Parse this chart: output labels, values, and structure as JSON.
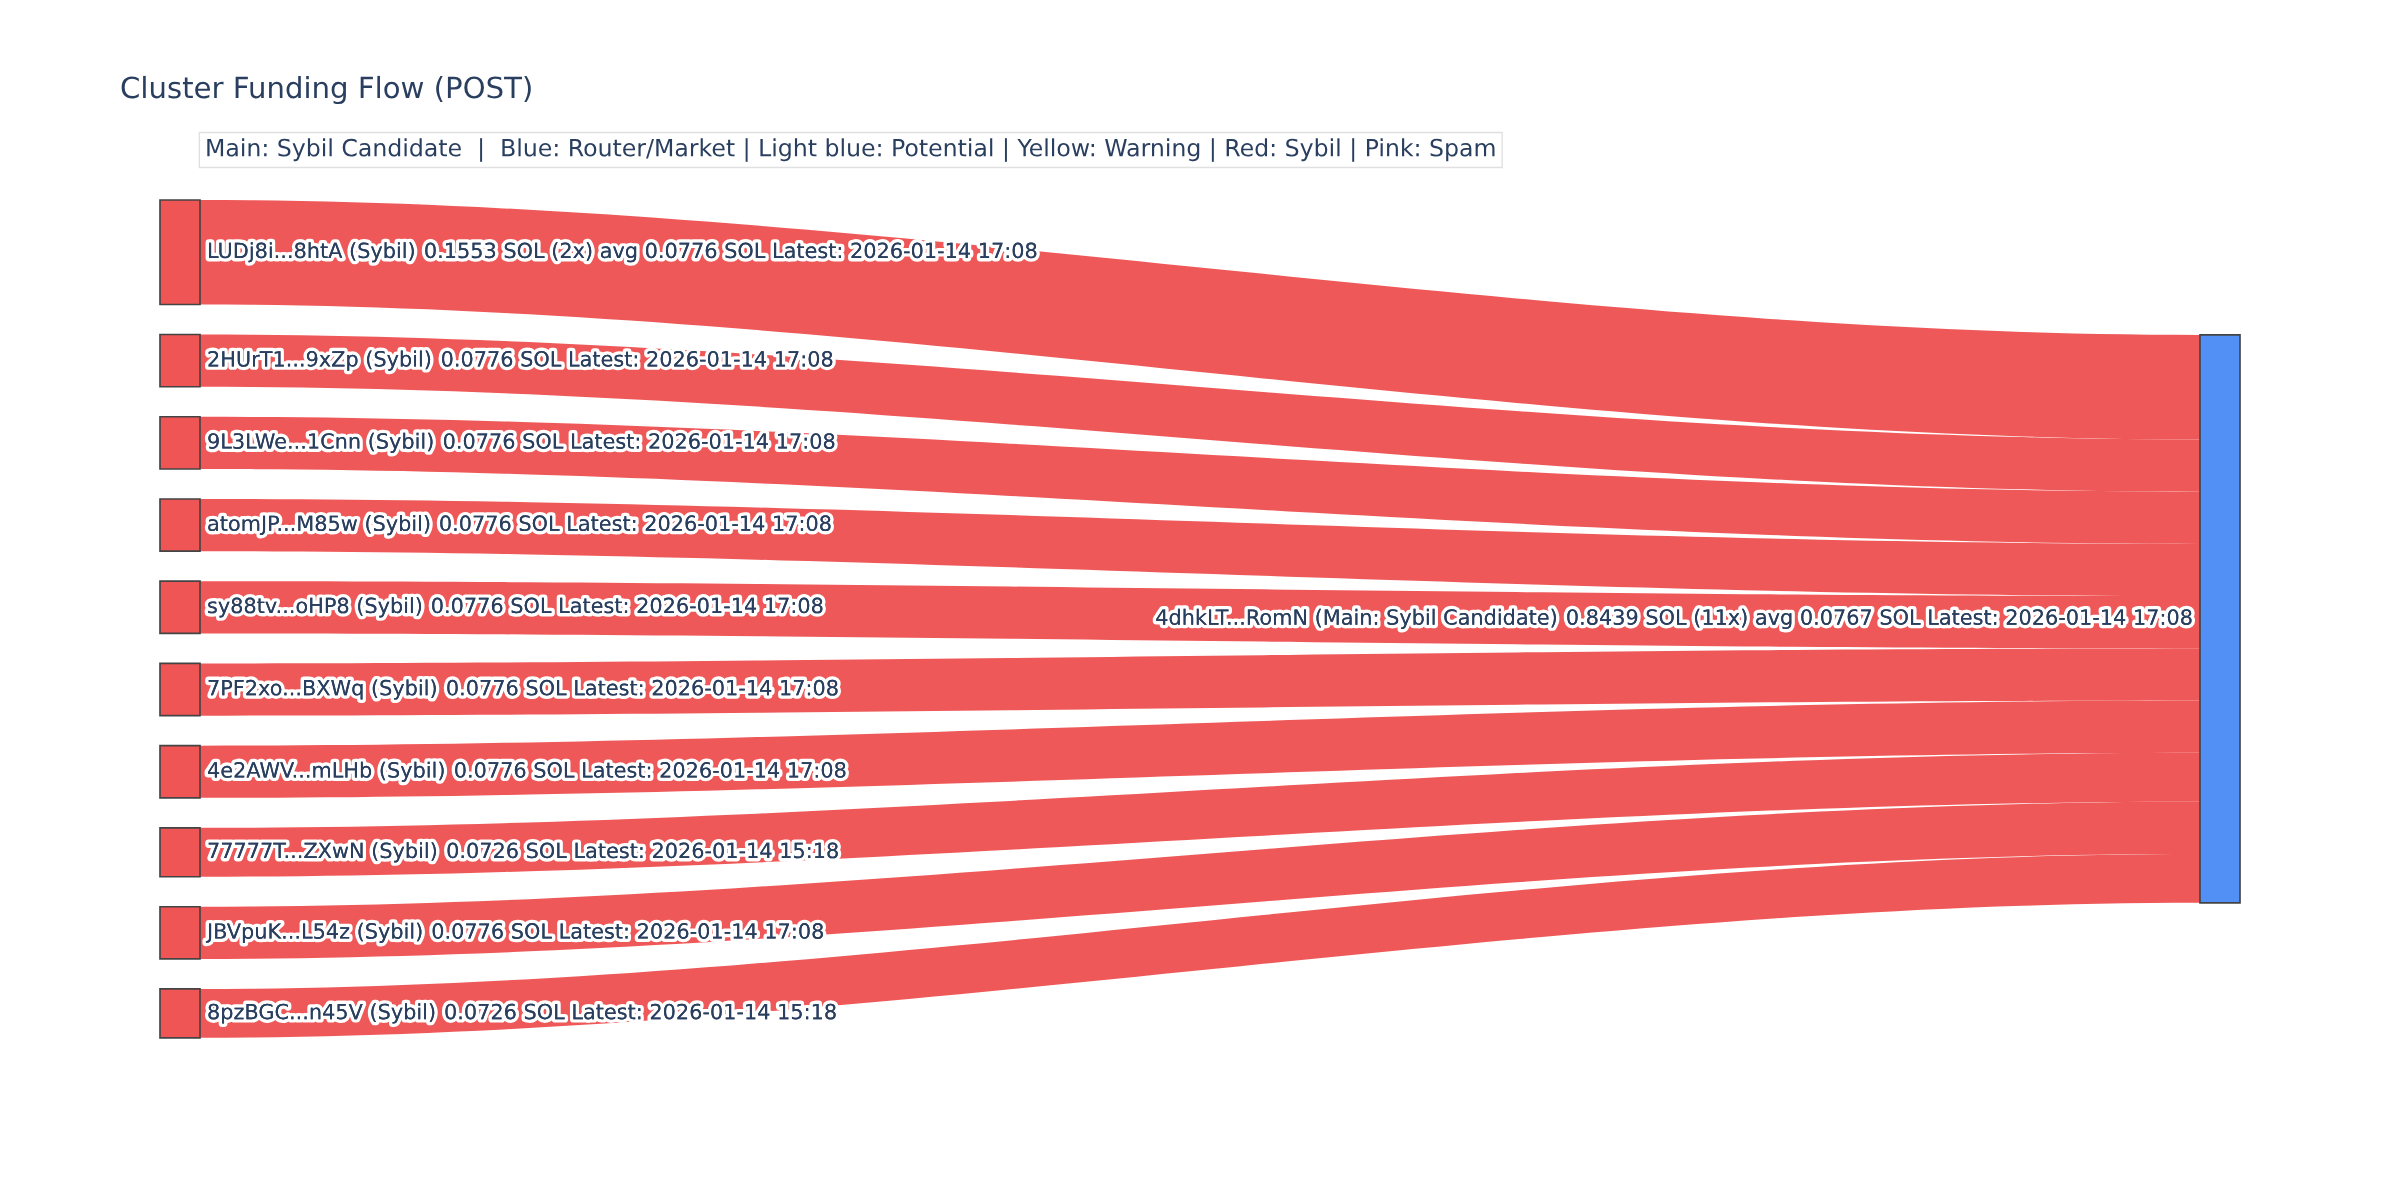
{
  "chart_data": {
    "type": "other",
    "title": "Cluster Funding Flow (POST)",
    "categories": [
      "LUDj8i...8htA (Sybil)",
      "2HUrT1...9xZp (Sybil)",
      "9L3LWe...1Cnn (Sybil)",
      "atomJP...M85w (Sybil)",
      "sy88tv...oHP8 (Sybil)",
      "7PF2xo...BXWq (Sybil)",
      "4e2AWV...mLHb (Sybil)",
      "77777T...ZXwN (Sybil)",
      "JBVpuK...L54z (Sybil)",
      "8pzBGC...n45V (Sybil)",
      "4dhkLT...RomN (Main: Sybil Candidate)"
    ],
    "values": [
      0.1553,
      0.0776,
      0.0776,
      0.0776,
      0.0776,
      0.0776,
      0.0776,
      0.0726,
      0.0776,
      0.0726,
      0.8439
    ],
    "value_labels": [
      "0.1553 SOL (2x) avg 0.0776 SOL Latest: 2026-01-14 17:08",
      "0.0776 SOL Latest: 2026-01-14 17:08",
      "0.0776 SOL Latest: 2026-01-14 17:08",
      "0.0776 SOL Latest: 2026-01-14 17:08",
      "0.0776 SOL Latest: 2026-01-14 17:08",
      "0.0776 SOL Latest: 2026-01-14 17:08",
      "0.0776 SOL Latest: 2026-01-14 17:08",
      "0.0726 SOL Latest: 2026-01-14 15:18",
      "0.0776 SOL Latest: 2026-01-14 17:08",
      "0.0726 SOL Latest: 2026-01-14 15:18",
      "0.8439 SOL (11x) avg 0.0767 SOL Latest: 2026-01-14 17:08"
    ],
    "colors": [
      "#ef5555",
      "#ef5555",
      "#ef5555",
      "#ef5555",
      "#ef5555",
      "#ef5555",
      "#ef5555",
      "#ef5555",
      "#ef5555",
      "#ef5555",
      "#5390f5"
    ],
    "annotations": [
      "Main: Sybil Candidate  |  Blue: Router/Market | Light blue: Potential | Yellow: Warning | Red: Sybil | Pink: Spam"
    ]
  }
}
